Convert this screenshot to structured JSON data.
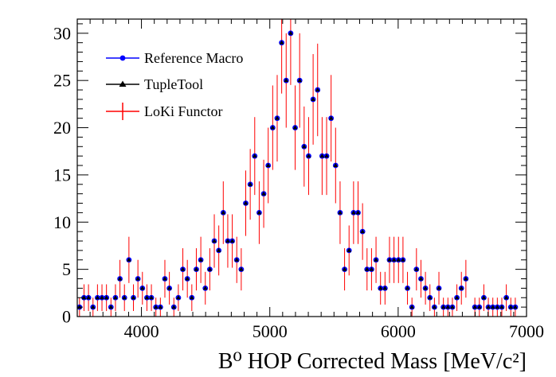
{
  "chart_data": {
    "type": "scatter",
    "title": "",
    "xlabel": "B⁰ HOP Corrected Mass [MeV/c²]",
    "ylabel": "",
    "xlim": [
      3500,
      7000
    ],
    "ylim": [
      0,
      31.5
    ],
    "xticks": [
      4000,
      5000,
      6000,
      7000
    ],
    "yticks": [
      0,
      5,
      10,
      15,
      20,
      25,
      30
    ],
    "bin_width": 35,
    "grid": false,
    "legend_position": "top-left",
    "x": [
      3517.5,
      3552.5,
      3587.5,
      3622.5,
      3657.5,
      3692.5,
      3727.5,
      3762.5,
      3797.5,
      3832.5,
      3867.5,
      3902.5,
      3937.5,
      3972.5,
      4007.5,
      4042.5,
      4077.5,
      4112.5,
      4147.5,
      4182.5,
      4217.5,
      4252.5,
      4287.5,
      4322.5,
      4357.5,
      4392.5,
      4427.5,
      4462.5,
      4497.5,
      4532.5,
      4567.5,
      4602.5,
      4637.5,
      4672.5,
      4707.5,
      4742.5,
      4777.5,
      4812.5,
      4847.5,
      4882.5,
      4917.5,
      4952.5,
      4987.5,
      5022.5,
      5057.5,
      5092.5,
      5127.5,
      5162.5,
      5197.5,
      5232.5,
      5267.5,
      5302.5,
      5337.5,
      5372.5,
      5407.5,
      5442.5,
      5477.5,
      5512.5,
      5547.5,
      5582.5,
      5617.5,
      5652.5,
      5687.5,
      5722.5,
      5757.5,
      5792.5,
      5827.5,
      5862.5,
      5897.5,
      5932.5,
      5967.5,
      6002.5,
      6037.5,
      6072.5,
      6107.5,
      6142.5,
      6177.5,
      6212.5,
      6247.5,
      6282.5,
      6317.5,
      6352.5,
      6387.5,
      6422.5,
      6457.5,
      6492.5,
      6527.5,
      6562.5,
      6597.5,
      6632.5,
      6667.5,
      6702.5,
      6737.5,
      6772.5,
      6807.5,
      6842.5,
      6877.5,
      6912.5
    ],
    "series": [
      {
        "name": "Reference Macro",
        "color": "#0000ff",
        "marker": "circle",
        "values": [
          1,
          2,
          2,
          1,
          2,
          2,
          2,
          1,
          2,
          4,
          2,
          6,
          2,
          4,
          3,
          2,
          2,
          1,
          1,
          4,
          3,
          1,
          2,
          5,
          4,
          2,
          5,
          6,
          3,
          5,
          8,
          7,
          11,
          8,
          8,
          6,
          5,
          12,
          14,
          17,
          11,
          13,
          16,
          20,
          21,
          29,
          25,
          30,
          20,
          25,
          18,
          17,
          23,
          24,
          17,
          17,
          21,
          16,
          11,
          5,
          7,
          11,
          11,
          9,
          5,
          5,
          6,
          3,
          3,
          6,
          6,
          6,
          6,
          3,
          1,
          5,
          4,
          3,
          2,
          1,
          3,
          1,
          1,
          1,
          2,
          3,
          4,
          0,
          1,
          1,
          2,
          1,
          1,
          1,
          1,
          2,
          1,
          1
        ]
      },
      {
        "name": "TupleTool",
        "color": "#000000",
        "marker": "triangle",
        "values": [
          1,
          2,
          2,
          1,
          2,
          2,
          2,
          1,
          2,
          4,
          2,
          6,
          2,
          4,
          3,
          2,
          2,
          1,
          1,
          4,
          3,
          1,
          2,
          5,
          4,
          2,
          5,
          6,
          3,
          5,
          8,
          7,
          11,
          8,
          8,
          6,
          5,
          12,
          14,
          17,
          11,
          13,
          16,
          20,
          21,
          29,
          25,
          30,
          20,
          25,
          18,
          17,
          23,
          24,
          17,
          17,
          21,
          16,
          11,
          5,
          7,
          11,
          11,
          9,
          5,
          5,
          6,
          3,
          3,
          6,
          6,
          6,
          6,
          3,
          1,
          5,
          4,
          3,
          2,
          1,
          3,
          1,
          1,
          1,
          2,
          3,
          4,
          0,
          1,
          1,
          2,
          1,
          1,
          1,
          1,
          2,
          1,
          1
        ]
      },
      {
        "name": "LoKi Functor",
        "color": "#ff0000",
        "marker": "cross",
        "values": [
          1,
          2,
          2,
          1,
          2,
          2,
          2,
          1,
          2,
          4,
          2,
          6,
          2,
          4,
          3,
          2,
          2,
          1,
          1,
          4,
          3,
          1,
          2,
          5,
          4,
          2,
          5,
          6,
          3,
          5,
          8,
          7,
          11,
          8,
          8,
          6,
          5,
          12,
          14,
          17,
          11,
          13,
          16,
          20,
          21,
          29,
          25,
          30,
          20,
          25,
          18,
          17,
          23,
          24,
          17,
          17,
          21,
          16,
          11,
          5,
          7,
          11,
          11,
          9,
          5,
          5,
          6,
          3,
          3,
          6,
          6,
          6,
          6,
          3,
          1,
          5,
          4,
          3,
          2,
          1,
          3,
          1,
          1,
          1,
          2,
          3,
          4,
          0,
          1,
          1,
          2,
          1,
          1,
          1,
          1,
          2,
          1,
          1
        ]
      }
    ]
  }
}
